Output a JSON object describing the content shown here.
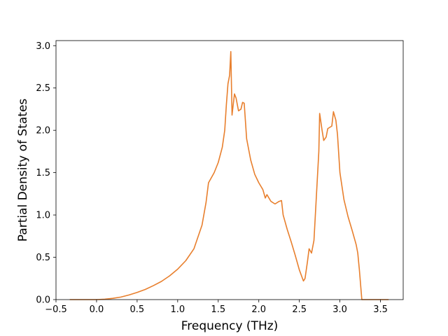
{
  "chart_data": {
    "type": "line",
    "title": "",
    "xlabel": "Frequency (THz)",
    "ylabel": "Partial Density of States",
    "xlim": [
      -0.5,
      3.78
    ],
    "ylim": [
      0.0,
      3.06
    ],
    "xticks": [
      -0.5,
      0.0,
      0.5,
      1.0,
      1.5,
      2.0,
      2.5,
      3.0,
      3.5
    ],
    "xtick_labels": [
      "−0.5",
      "0.0",
      "0.5",
      "1.0",
      "1.5",
      "2.0",
      "2.5",
      "3.0",
      "3.5"
    ],
    "yticks": [
      0.0,
      0.5,
      1.0,
      1.5,
      2.0,
      2.5,
      3.0
    ],
    "ytick_labels": [
      "0.0",
      "0.5",
      "1.0",
      "1.5",
      "2.0",
      "2.5",
      "3.0"
    ],
    "grid": false,
    "series": [
      {
        "name": "",
        "color": "#e87f2d",
        "points": [
          [
            -0.33,
            0.0
          ],
          [
            0.0,
            0.0
          ],
          [
            0.1,
            0.005
          ],
          [
            0.2,
            0.015
          ],
          [
            0.3,
            0.03
          ],
          [
            0.4,
            0.055
          ],
          [
            0.5,
            0.085
          ],
          [
            0.6,
            0.12
          ],
          [
            0.7,
            0.165
          ],
          [
            0.8,
            0.215
          ],
          [
            0.9,
            0.28
          ],
          [
            1.0,
            0.36
          ],
          [
            1.1,
            0.46
          ],
          [
            1.2,
            0.6
          ],
          [
            1.3,
            0.88
          ],
          [
            1.35,
            1.15
          ],
          [
            1.38,
            1.38
          ],
          [
            1.45,
            1.5
          ],
          [
            1.5,
            1.62
          ],
          [
            1.55,
            1.8
          ],
          [
            1.58,
            2.0
          ],
          [
            1.6,
            2.3
          ],
          [
            1.62,
            2.55
          ],
          [
            1.64,
            2.65
          ],
          [
            1.655,
            2.93
          ],
          [
            1.67,
            2.18
          ],
          [
            1.7,
            2.43
          ],
          [
            1.72,
            2.38
          ],
          [
            1.75,
            2.23
          ],
          [
            1.78,
            2.25
          ],
          [
            1.8,
            2.33
          ],
          [
            1.82,
            2.32
          ],
          [
            1.85,
            1.9
          ],
          [
            1.9,
            1.65
          ],
          [
            1.95,
            1.48
          ],
          [
            2.0,
            1.38
          ],
          [
            2.05,
            1.3
          ],
          [
            2.08,
            1.2
          ],
          [
            2.1,
            1.24
          ],
          [
            2.15,
            1.16
          ],
          [
            2.2,
            1.13
          ],
          [
            2.25,
            1.16
          ],
          [
            2.28,
            1.17
          ],
          [
            2.3,
            1.0
          ],
          [
            2.35,
            0.83
          ],
          [
            2.4,
            0.68
          ],
          [
            2.45,
            0.52
          ],
          [
            2.5,
            0.35
          ],
          [
            2.55,
            0.22
          ],
          [
            2.57,
            0.25
          ],
          [
            2.6,
            0.45
          ],
          [
            2.62,
            0.6
          ],
          [
            2.65,
            0.55
          ],
          [
            2.68,
            0.7
          ],
          [
            2.7,
            1.05
          ],
          [
            2.72,
            1.4
          ],
          [
            2.74,
            1.75
          ],
          [
            2.75,
            2.2
          ],
          [
            2.78,
            2.0
          ],
          [
            2.8,
            1.88
          ],
          [
            2.83,
            1.92
          ],
          [
            2.85,
            2.02
          ],
          [
            2.9,
            2.05
          ],
          [
            2.92,
            2.22
          ],
          [
            2.95,
            2.12
          ],
          [
            2.97,
            1.95
          ],
          [
            3.0,
            1.5
          ],
          [
            3.05,
            1.18
          ],
          [
            3.1,
            0.98
          ],
          [
            3.15,
            0.82
          ],
          [
            3.2,
            0.65
          ],
          [
            3.22,
            0.55
          ],
          [
            3.24,
            0.35
          ],
          [
            3.27,
            0.0
          ],
          [
            3.6,
            0.0
          ]
        ]
      }
    ]
  }
}
